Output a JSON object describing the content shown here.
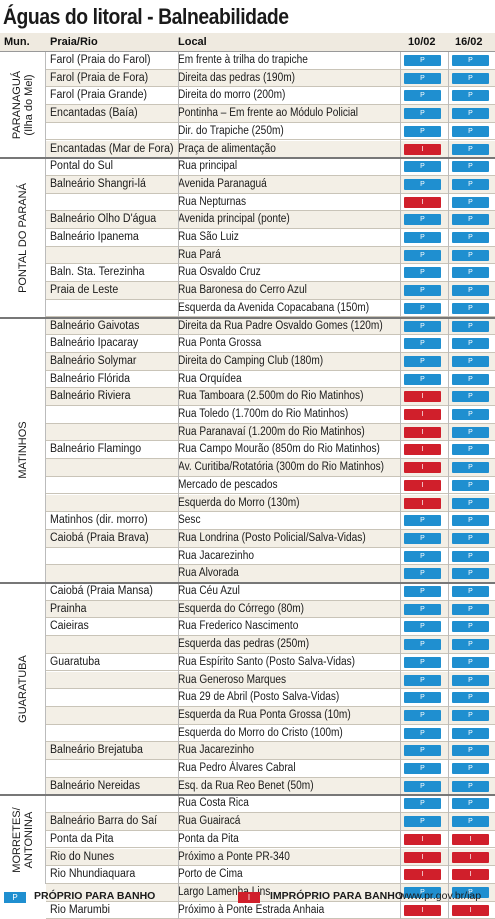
{
  "title": "Águas do litoral - Balneabilidade",
  "headers": {
    "mun": "Mun.",
    "praia": "Praia/Rio",
    "local": "Local",
    "d1": "10/02",
    "d2": "16/02"
  },
  "colors": {
    "proprio": "#1f8fd0",
    "improprio": "#d01f2b",
    "header_bg": "#efeae0"
  },
  "municipios": [
    {
      "name": "PARANAGUÁ\n(Ilha do Mel)",
      "rows": 6
    },
    {
      "name": "PONTAL DO PARANÁ",
      "rows": 9
    },
    {
      "name": "MATINHOS",
      "rows": 15
    },
    {
      "name": "GUARATUBA",
      "rows": 12
    },
    {
      "name": "MORRETES/\nANTONINA",
      "rows": 5
    }
  ],
  "rows": [
    {
      "praia": "Farol (Praia do Farol)",
      "local": "Em frente à trilha do trapiche",
      "d1": "P",
      "d2": "P"
    },
    {
      "praia": "Farol (Praia de Fora)",
      "local": "Direita das pedras (190m)",
      "d1": "P",
      "d2": "P"
    },
    {
      "praia": "Farol (Praia Grande)",
      "local": "Direita do morro (200m)",
      "d1": "P",
      "d2": "P"
    },
    {
      "praia": "Encantadas (Baía)",
      "local": "Pontinha – Em frente ao Módulo Policial",
      "d1": "P",
      "d2": "P"
    },
    {
      "praia": "",
      "local": "Dir. do Trapiche (250m)",
      "d1": "P",
      "d2": "P"
    },
    {
      "praia": "Encantadas (Mar de Fora)",
      "local": "Praça de alimentação",
      "d1": "I",
      "d2": "P"
    },
    {
      "praia": "Pontal do Sul",
      "local": "Rua principal",
      "d1": "P",
      "d2": "P"
    },
    {
      "praia": "Balneário Shangri-lá",
      "local": "Avenida Paranaguá",
      "d1": "P",
      "d2": "P"
    },
    {
      "praia": "",
      "local": "Rua Nepturnas",
      "d1": "I",
      "d2": "P"
    },
    {
      "praia": "Balneário Olho D'água",
      "local": "Avenida principal (ponte)",
      "d1": "P",
      "d2": "P"
    },
    {
      "praia": "Balneário Ipanema",
      "local": "Rua São Luiz",
      "d1": "P",
      "d2": "P"
    },
    {
      "praia": "",
      "local": "Rua Pará",
      "d1": "P",
      "d2": "P"
    },
    {
      "praia": "Baln. Sta. Terezinha",
      "local": "Rua Osvaldo Cruz",
      "d1": "P",
      "d2": "P"
    },
    {
      "praia": "Praia de Leste",
      "local": "Rua Baronesa do Cerro Azul",
      "d1": "P",
      "d2": "P"
    },
    {
      "praia": "",
      "local": "Esquerda da Avenida Copacabana (150m)",
      "d1": "P",
      "d2": "P"
    },
    {
      "praia": "Balneário Gaivotas",
      "local": "Direita da Rua Padre Osvaldo Gomes (120m)",
      "d1": "P",
      "d2": "P"
    },
    {
      "praia": "Balneário Ipacaray",
      "local": "Rua Ponta Grossa",
      "d1": "P",
      "d2": "P"
    },
    {
      "praia": "Balneário Solymar",
      "local": "Direita do Camping Club (180m)",
      "d1": "P",
      "d2": "P"
    },
    {
      "praia": "Balneário Flórida",
      "local": "Rua Orquídea",
      "d1": "P",
      "d2": "P"
    },
    {
      "praia": "Balneário Riviera",
      "local": "Rua Tamboara (2.500m do Rio Matinhos)",
      "d1": "I",
      "d2": "P"
    },
    {
      "praia": "",
      "local": "Rua Toledo (1.700m do Rio Matinhos)",
      "d1": "I",
      "d2": "P"
    },
    {
      "praia": "",
      "local": "Rua Paranavaí (1.200m do Rio Matinhos)",
      "d1": "I",
      "d2": "P"
    },
    {
      "praia": "Balneário Flamingo",
      "local": "Rua Campo Mourão (850m do Rio Matinhos)",
      "d1": "I",
      "d2": "P"
    },
    {
      "praia": "",
      "local": "Av. Curitiba/Rotatória (300m do Rio Matinhos)",
      "d1": "I",
      "d2": "P"
    },
    {
      "praia": "",
      "local": "Mercado de pescados",
      "d1": "I",
      "d2": "P"
    },
    {
      "praia": "",
      "local": "Esquerda do Morro (130m)",
      "d1": "I",
      "d2": "P"
    },
    {
      "praia": "Matinhos (dir. morro)",
      "local": "Sesc",
      "d1": "P",
      "d2": "P"
    },
    {
      "praia": "Caiobá (Praia Brava)",
      "local": "Rua Londrina (Posto Policial/Salva-Vidas)",
      "d1": "P",
      "d2": "P"
    },
    {
      "praia": "",
      "local": "Rua Jacarezinho",
      "d1": "P",
      "d2": "P"
    },
    {
      "praia": "",
      "local": "Rua Alvorada",
      "d1": "P",
      "d2": "P"
    },
    {
      "praia": "Caiobá (Praia Mansa)",
      "local": "Rua Céu Azul",
      "d1": "P",
      "d2": "P"
    },
    {
      "praia": "Prainha",
      "local": "Esquerda do Córrego (80m)",
      "d1": "P",
      "d2": "P"
    },
    {
      "praia": "Caieiras",
      "local": "Rua Frederico Nascimento",
      "d1": "P",
      "d2": "P"
    },
    {
      "praia": "",
      "local": "Esquerda das pedras (250m)",
      "d1": "P",
      "d2": "P"
    },
    {
      "praia": "Guaratuba",
      "local": "Rua Espírito Santo (Posto Salva-Vidas)",
      "d1": "P",
      "d2": "P"
    },
    {
      "praia": "",
      "local": "Rua Generoso Marques",
      "d1": "P",
      "d2": "P"
    },
    {
      "praia": "",
      "local": "Rua 29 de Abril (Posto Salva-Vidas)",
      "d1": "P",
      "d2": "P"
    },
    {
      "praia": "",
      "local": "Esquerda da Rua Ponta Grossa (10m)",
      "d1": "P",
      "d2": "P"
    },
    {
      "praia": "",
      "local": "Esquerda do Morro do Cristo (100m)",
      "d1": "P",
      "d2": "P"
    },
    {
      "praia": "Balneário Brejatuba",
      "local": "Rua Jacarezinho",
      "d1": "P",
      "d2": "P"
    },
    {
      "praia": "",
      "local": "Rua Pedro Álvares Cabral",
      "d1": "P",
      "d2": "P"
    },
    {
      "praia": "Balneário Nereidas",
      "local": "Esq. da Rua Reo Benet (50m)",
      "d1": "P",
      "d2": "P"
    },
    {
      "praia": "",
      "local": "Rua Costa Rica",
      "d1": "P",
      "d2": "P"
    },
    {
      "praia": "Balneário Barra do Saí",
      "local": "Rua Guairacá",
      "d1": "P",
      "d2": "P"
    },
    {
      "praia": "Ponta da Pita",
      "local": "Ponta da Pita",
      "d1": "I",
      "d2": "I"
    },
    {
      "praia": "Rio do Nunes",
      "local": "Próximo a Ponte PR-340",
      "d1": "I",
      "d2": "I"
    },
    {
      "praia": "Rio Nhundiaquara",
      "local": "Porto de Cima",
      "d1": "I",
      "d2": "I"
    },
    {
      "praia": "",
      "local": "Largo Lamenha Lins",
      "d1": "P",
      "d2": "P"
    },
    {
      "praia": "Rio Marumbi",
      "local": "Próximo à Ponte Estrada Anhaia",
      "d1": "I",
      "d2": "I"
    }
  ],
  "badge_text": {
    "P": "P",
    "I": "I"
  },
  "legend": {
    "proprio_box": "P",
    "proprio_label": "PRÓPRIO PARA BANHO",
    "improprio_box": "I",
    "improprio_label": "IMPRÓPRIO PARA BANHO",
    "url": "www.pr.gov.br/iap"
  }
}
